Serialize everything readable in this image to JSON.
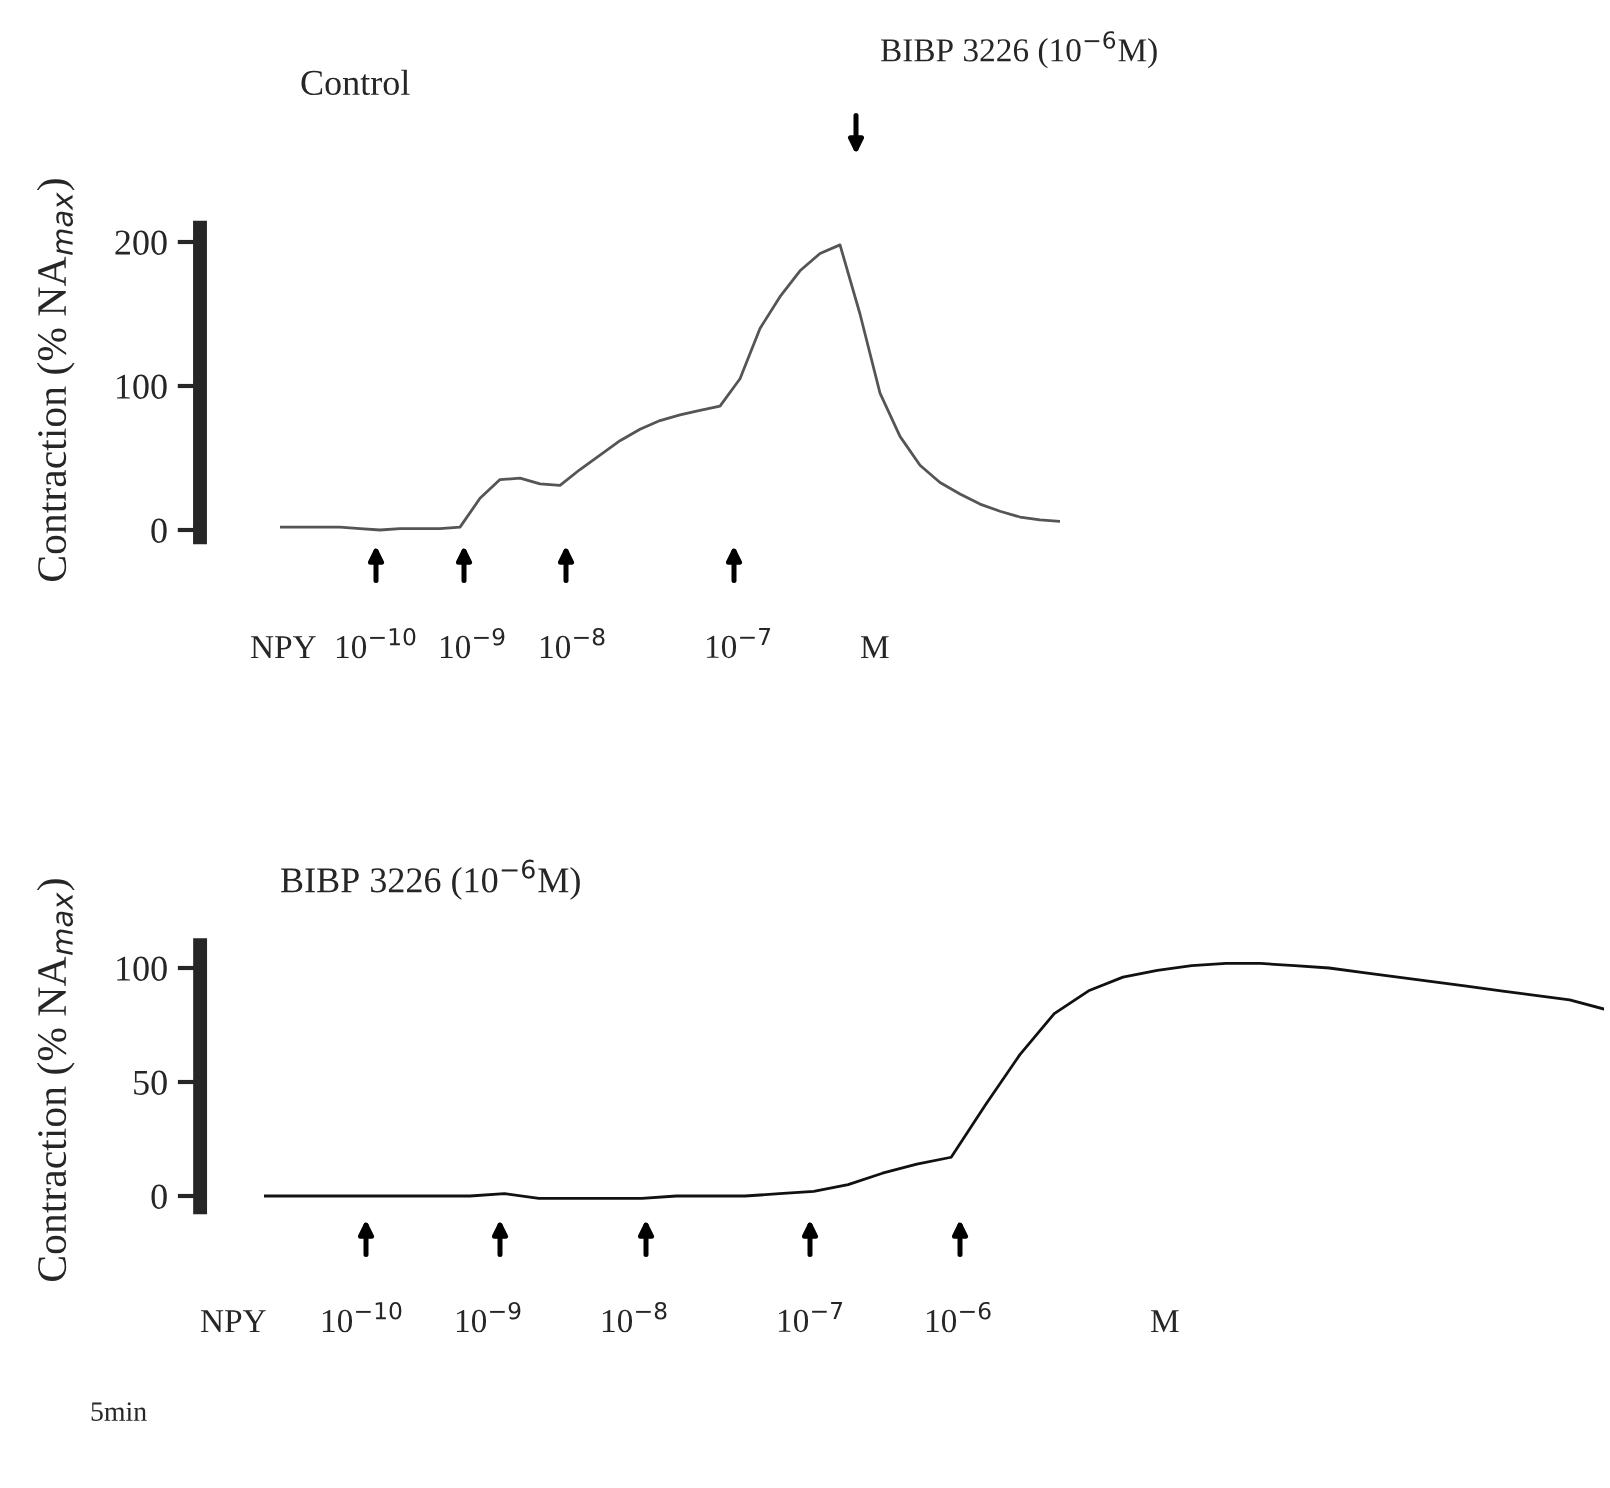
{
  "chart_data": [
    {
      "type": "line",
      "title": "Control",
      "ylabel": "Contraction (% NA$_{max}$)",
      "tick_labels": "y",
      "ylim": [
        -5,
        210
      ],
      "yticks": [
        0,
        100,
        200
      ],
      "categories": [
        null,
        null,
        null,
        null,
        null,
        null,
        null,
        null,
        null,
        null,
        null,
        null,
        null,
        null,
        null,
        null,
        null,
        null,
        null,
        null,
        null,
        null,
        null,
        null,
        null,
        null,
        null,
        null,
        null,
        null,
        null,
        null,
        null,
        null,
        null,
        null,
        null,
        null,
        null,
        null
      ],
      "series": [
        {
          "color": "#555555",
          "values": [
            2,
            2,
            2,
            2,
            1,
            0,
            1,
            1,
            1,
            2,
            22,
            35,
            36,
            32,
            31,
            42,
            52,
            62,
            70,
            76,
            80,
            83,
            86,
            105,
            140,
            162,
            180,
            192,
            198,
            150,
            95,
            65,
            45,
            33,
            25,
            18,
            13,
            9,
            7,
            6
          ]
        }
      ],
      "annotations": [
        "NPY",
        "10$^{−10}$",
        "10$^{−9}$",
        "10$^{−8}$",
        "10$^{−7}$",
        "M",
        "BIBP 3226 (10$^{−6}$M)"
      ]
    },
    {
      "type": "line",
      "title": "BIBP 3226 (10$^{−6}$M)",
      "ylabel": "Contraction (% NA$_{max}$)",
      "tick_labels": "y",
      "ylim": [
        -5,
        110
      ],
      "yticks": [
        0,
        50,
        100
      ],
      "categories": [
        null,
        null,
        null,
        null,
        null,
        null,
        null,
        null,
        null,
        null,
        null,
        null,
        null,
        null,
        null,
        null,
        null,
        null,
        null,
        null,
        null,
        null,
        null,
        null,
        null,
        null,
        null,
        null,
        null,
        null,
        null,
        null,
        null,
        null,
        null,
        null,
        null,
        null,
        null,
        null
      ],
      "series": [
        {
          "color": "#111111",
          "values": [
            0,
            0,
            0,
            0,
            0,
            0,
            0,
            1,
            -1,
            -1,
            -1,
            -1,
            0,
            0,
            0,
            1,
            2,
            5,
            10,
            14,
            17,
            40,
            62,
            80,
            90,
            96,
            99,
            101,
            102,
            102,
            101,
            100,
            98,
            96,
            94,
            92,
            90,
            88,
            86,
            82
          ]
        }
      ],
      "annotations": [
        "NPY",
        "10$^{−10}$",
        "10$^{−9}$",
        "10$^{−8}$",
        "10$^{−7}$",
        "10$^{−6}$",
        "M",
        "5min"
      ]
    }
  ]
}
